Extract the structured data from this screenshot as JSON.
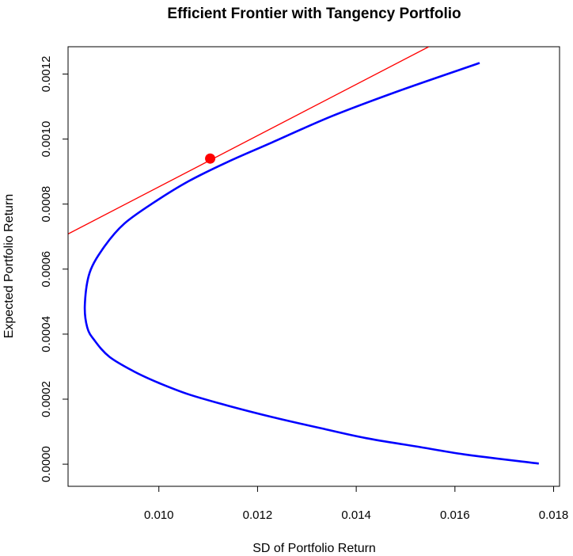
{
  "chart_data": {
    "type": "line",
    "title": "Efficient Frontier with Tangency Portfolio",
    "xlabel": "SD of Portfolio Return",
    "ylabel": "Expected Portfolio Return",
    "xlim": [
      0.00816,
      0.01812
    ],
    "ylim": [
      -6.8e-05,
      0.001284
    ],
    "x_ticks": [
      "0.010",
      "0.012",
      "0.014",
      "0.016",
      "0.018"
    ],
    "y_ticks": [
      "0.0000",
      "0.0002",
      "0.0004",
      "0.0006",
      "0.0008",
      "0.0010",
      "0.0012"
    ],
    "grid": false,
    "legend": "none",
    "series": [
      {
        "type": "line",
        "color": "#0000ff",
        "x": [
          0.0165,
          0.0149,
          0.0135,
          0.0123,
          0.0114,
          0.0106,
          0.0099,
          0.0093,
          0.0089,
          0.0086,
          0.0085,
          0.00855,
          0.0087,
          0.009,
          0.0095,
          0.01,
          0.0106,
          0.0114,
          0.0123,
          0.0133,
          0.0142,
          0.0152,
          0.0162,
          0.0177
        ],
        "y": [
          0.001234,
          0.00115,
          0.00107,
          0.00099,
          0.00093,
          0.00087,
          0.000805,
          0.00074,
          0.00067,
          0.00059,
          0.00049,
          0.00042,
          0.00038,
          0.00033,
          0.000285,
          0.00025,
          0.000215,
          0.00018,
          0.000145,
          0.00011,
          8e-05,
          5.5e-05,
          3e-05,
          2e-06
        ]
      },
      {
        "type": "line",
        "color": "#ff0000",
        "x": [
          0.00816,
          0.01547
        ],
        "y": [
          0.000708,
          0.001284
        ]
      },
      {
        "type": "scatter",
        "color": "#ff0000",
        "x": [
          0.01104
        ],
        "y": [
          0.00094
        ]
      }
    ]
  }
}
